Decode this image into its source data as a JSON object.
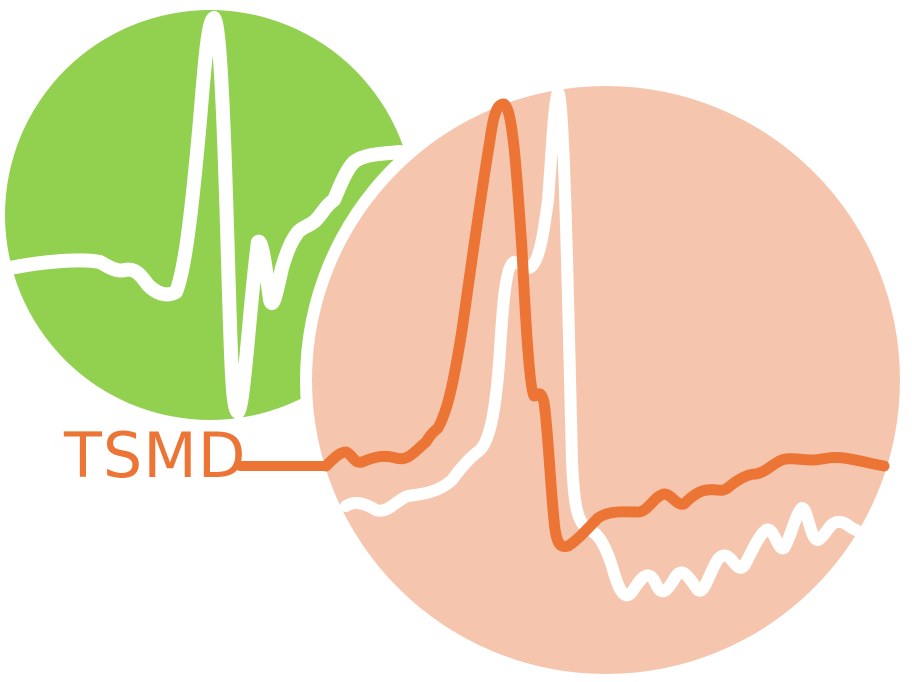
{
  "logo": {
    "text": "TSMD",
    "colors": {
      "green_circle": "#92d050",
      "peach_circle": "#f5c6ad",
      "orange": "#ec7536",
      "white": "#ffffff"
    }
  }
}
